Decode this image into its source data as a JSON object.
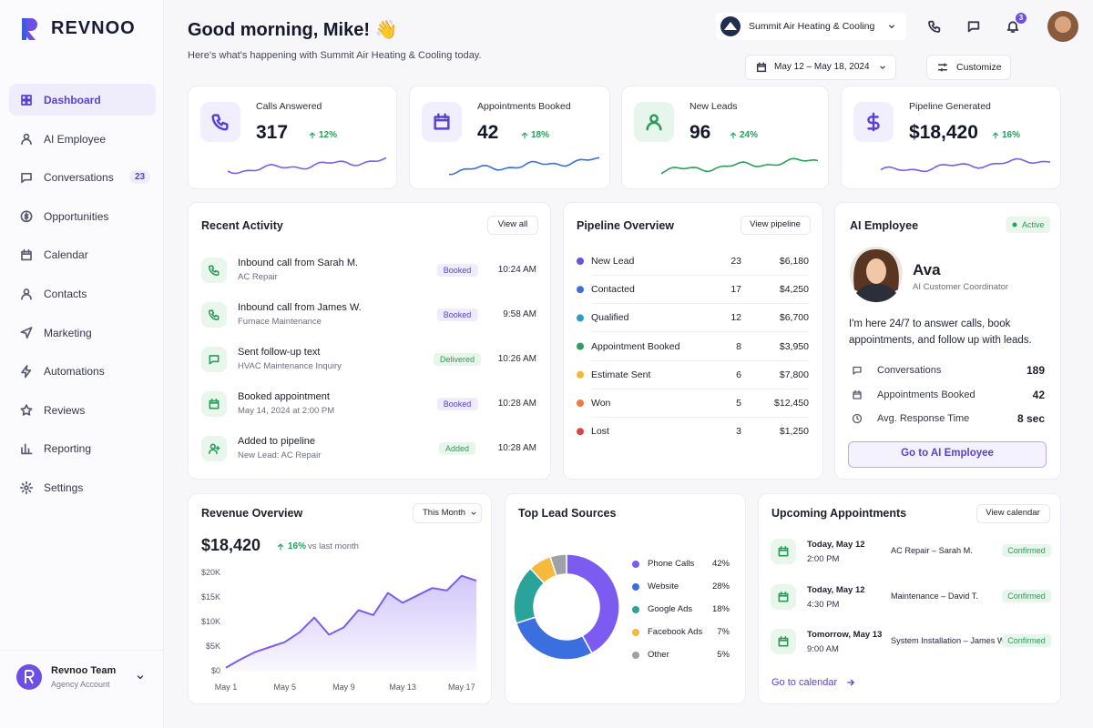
{
  "brand": "REVNOO",
  "nav": [
    {
      "label": "Dashboard"
    },
    {
      "label": "AI Employee"
    },
    {
      "label": "Conversations",
      "badge": 23
    },
    {
      "label": "Opportunities"
    },
    {
      "label": "Calendar"
    },
    {
      "label": "Contacts"
    },
    {
      "label": "Marketing"
    },
    {
      "label": "Automations"
    },
    {
      "label": "Reviews"
    },
    {
      "label": "Reporting"
    },
    {
      "label": "Settings"
    }
  ],
  "account": {
    "name": "Revnoo Team",
    "role": "Agency Account"
  },
  "header": {
    "greeting": "Good morning, Mike! 👋",
    "subtitle": "Here's what's happening with Summit Air Heating & Cooling today.",
    "company": "Summit Air Heating & Cooling",
    "notifications": 3,
    "date_range": "May 12 – May 18, 2024",
    "customize": "Customize"
  },
  "kpis": [
    {
      "label": "Calls Answered",
      "value": 317,
      "change": "12%"
    },
    {
      "label": "Appointments Booked",
      "value": 42,
      "change": "18%"
    },
    {
      "label": "New Leads",
      "value": 96,
      "change": "24%"
    },
    {
      "label": "Pipeline Generated",
      "value": "$18,420",
      "change": "16%"
    }
  ],
  "recent_activity": {
    "title": "Recent Activity",
    "button": "View all",
    "items": [
      {
        "title": "Inbound call from Sarah M.",
        "subtitle": "AC Repair",
        "status": "Booked",
        "time": "10:24 AM"
      },
      {
        "title": "Inbound call from James W.",
        "subtitle": "Furnace Maintenance",
        "status": "Booked",
        "time": "9:58 AM"
      },
      {
        "title": "Sent follow-up text",
        "subtitle": "HVAC Maintenance Inquiry",
        "status": "Delivered",
        "time": "10:26 AM"
      },
      {
        "title": "Booked appointment",
        "subtitle": "May 14, 2024 at 2:00 PM",
        "status": "Booked",
        "time": "10:28 AM"
      },
      {
        "title": "Added to pipeline",
        "subtitle": "New Lead: AC Repair",
        "status": "Added",
        "time": "10:28 AM"
      }
    ]
  },
  "pipeline": {
    "title": "Pipeline Overview",
    "button": "View pipeline",
    "stages": [
      {
        "name": "New Lead",
        "color": "#6d4fe6",
        "count": 23,
        "amount": "$6,180"
      },
      {
        "name": "Contacted",
        "color": "#3b6fe0",
        "count": 17,
        "amount": "$4,250"
      },
      {
        "name": "Qualified",
        "color": "#2a9fbf",
        "count": 12,
        "amount": "$6,700"
      },
      {
        "name": "Appointment Booked",
        "color": "#2aa05a",
        "count": 8,
        "amount": "$3,950"
      },
      {
        "name": "Estimate Sent",
        "color": "#f5b731",
        "count": 6,
        "amount": "$7,800"
      },
      {
        "name": "Won",
        "color": "#f07a3a",
        "count": 5,
        "amount": "$12,450"
      },
      {
        "name": "Lost",
        "color": "#e04343",
        "count": 3,
        "amount": "$1,250"
      }
    ]
  },
  "ai_employee": {
    "title": "AI Employee",
    "status": "Active",
    "name": "Ava",
    "role": "AI Customer Coordinator",
    "description": "I'm here 24/7 to answer calls, book appointments, and follow up with leads.",
    "stats": [
      {
        "label": "Conversations",
        "value": 189
      },
      {
        "label": "Appointments Booked",
        "value": 42
      },
      {
        "label": "Avg. Response Time",
        "value": "8 sec"
      }
    ],
    "button": "Go to AI Employee"
  },
  "appointments": {
    "title": "Upcoming Appointments",
    "button": "View calendar",
    "items": [
      {
        "date": "Today, May 12",
        "time": "2:00 PM",
        "description": "AC Repair – Sarah M.",
        "status": "Confirmed"
      },
      {
        "date": "Today, May 12",
        "time": "4:30 PM",
        "description": "Maintenance – David T.",
        "status": "Confirmed"
      },
      {
        "date": "Tomorrow, May 13",
        "time": "9:00 AM",
        "description": "System Installation – James W.",
        "status": "Confirmed"
      }
    ],
    "link": "Go to calendar"
  },
  "chart_data": [
    {
      "type": "area",
      "title": "Revenue Overview",
      "filter": "This Month",
      "total": "$18,420",
      "change": "16%",
      "change_note": "vs last month",
      "categories": [
        "May 1",
        null,
        null,
        null,
        "May 5",
        null,
        null,
        null,
        "May 9",
        null,
        null,
        null,
        "May 13",
        null,
        null,
        null,
        "May 17",
        null
      ],
      "values": [
        800,
        2500,
        4000,
        5000,
        6000,
        8000,
        11000,
        7500,
        9000,
        12500,
        11500,
        16000,
        14000,
        15500,
        17000,
        16500,
        19500,
        18500
      ],
      "color": "#7c5cf0",
      "ylim": [
        0,
        20000
      ],
      "yticks": [
        {
          "value": 0,
          "label": "$0"
        },
        {
          "value": 5000,
          "label": "$5K"
        },
        {
          "value": 10000,
          "label": "$10K"
        },
        {
          "value": 15000,
          "label": "$15K"
        },
        {
          "value": 20000,
          "label": "$20K"
        }
      ],
      "grid": false
    },
    {
      "type": "donut",
      "title": "Top Lead Sources",
      "categories": [
        "Phone Calls",
        "Website",
        "Google Ads",
        "Facebook Ads",
        "Other"
      ],
      "values": [
        42,
        28,
        18,
        7,
        5
      ],
      "value_labels": [
        "42%",
        "28%",
        "18%",
        "7%",
        "5%"
      ],
      "colors": [
        "#7c5cf0",
        "#3b6fe0",
        "#2aa39a",
        "#f6b93b",
        "#a0a0a8"
      ]
    }
  ]
}
